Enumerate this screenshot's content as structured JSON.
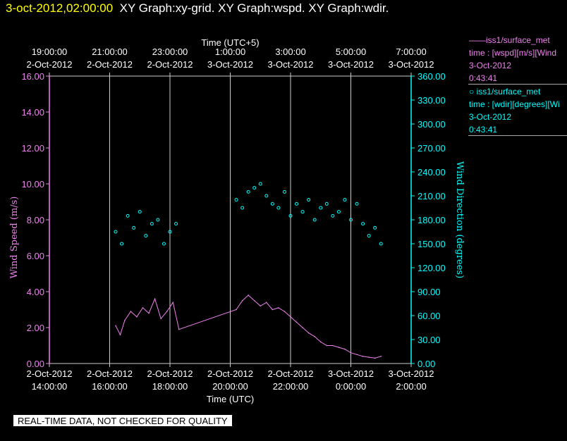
{
  "header": {
    "timestamp": "3-oct-2012,02:00:00",
    "titles": "XY Graph:xy-grid.  XY Graph:wspd.  XY Graph:wdir."
  },
  "legend": {
    "series1": {
      "symbol": "——",
      "name": "iss1/surface_met",
      "line2": "time : [wspd][m/s][Wind",
      "line3": "3-Oct-2012",
      "line4": "0:43:41",
      "color": "#ee82ee"
    },
    "series2": {
      "symbol": "○",
      "name": "iss1/surface_met",
      "line2": "time : [wdir][degrees][Wi",
      "line3": "3-Oct-2012",
      "line4": "0:43:41",
      "color": "#00ffff"
    }
  },
  "notice": "REAL-TIME DATA, NOT CHECKED FOR QUALITY",
  "chart_data": {
    "type": "line",
    "top_axis_title": "Time (UTC+5)",
    "bottom_axis_title": "Time (UTC)",
    "ylabel_left": "Wind Speed (m/s)",
    "ylabel_right": "Wind Direction (degrees)",
    "ylim_left": [
      0,
      16
    ],
    "ylim_right": [
      0,
      360
    ],
    "xlim_hours": [
      14,
      26
    ],
    "bottom_ticks": [
      {
        "date": "2-Oct-2012",
        "time": "14:00:00"
      },
      {
        "date": "2-Oct-2012",
        "time": "16:00:00"
      },
      {
        "date": "2-Oct-2012",
        "time": "18:00:00"
      },
      {
        "date": "2-Oct-2012",
        "time": "20:00:00"
      },
      {
        "date": "2-Oct-2012",
        "time": "22:00:00"
      },
      {
        "date": "3-Oct-2012",
        "time": "0:00:00"
      },
      {
        "date": "3-Oct-2012",
        "time": "2:00:00"
      }
    ],
    "top_ticks": [
      {
        "time": "19:00:00",
        "date": "2-Oct-2012"
      },
      {
        "time": "21:00:00",
        "date": "2-Oct-2012"
      },
      {
        "time": "23:00:00",
        "date": "2-Oct-2012"
      },
      {
        "time": "1:00:00",
        "date": "3-Oct-2012"
      },
      {
        "time": "3:00:00",
        "date": "3-Oct-2012"
      },
      {
        "time": "5:00:00",
        "date": "3-Oct-2012"
      },
      {
        "time": "7:00:00",
        "date": "3-Oct-2012"
      }
    ],
    "left_ticks": [
      "0.00",
      "2.00",
      "4.00",
      "6.00",
      "8.00",
      "10.00",
      "12.00",
      "14.00",
      "16.00"
    ],
    "right_ticks": [
      "0.00",
      "30.00",
      "60.00",
      "90.00",
      "120.00",
      "150.00",
      "180.00",
      "210.00",
      "240.00",
      "270.00",
      "300.00",
      "330.00",
      "360.00"
    ],
    "vertical_gridlines_hours": [
      16,
      18,
      20,
      22,
      24
    ],
    "wspd_series": {
      "name": "wspd",
      "color": "#ee82ee",
      "hours": [
        16.2,
        16.35,
        16.5,
        16.7,
        16.9,
        17.1,
        17.3,
        17.5,
        17.7,
        17.9,
        18.1,
        18.3,
        20.2,
        20.4,
        20.6,
        20.8,
        21.0,
        21.2,
        21.4,
        21.6,
        21.8,
        22.0,
        22.2,
        22.4,
        22.6,
        22.8,
        23.0,
        23.2,
        23.4,
        23.6,
        23.8,
        24.0,
        24.2,
        24.4,
        24.6,
        24.8,
        25.0
      ],
      "values": [
        2.1,
        1.6,
        2.4,
        2.9,
        2.6,
        3.1,
        2.8,
        3.6,
        2.5,
        2.9,
        3.4,
        1.9,
        3.0,
        3.5,
        3.8,
        3.5,
        3.2,
        3.4,
        3.0,
        3.1,
        2.9,
        2.6,
        2.3,
        2.0,
        1.7,
        1.5,
        1.2,
        1.0,
        1.0,
        0.9,
        0.8,
        0.6,
        0.5,
        0.4,
        0.35,
        0.3,
        0.4
      ]
    },
    "wdir_series": {
      "name": "wdir",
      "color": "#00ffff",
      "hours": [
        16.2,
        16.4,
        16.6,
        16.8,
        17.0,
        17.2,
        17.4,
        17.6,
        17.8,
        18.0,
        18.2,
        20.2,
        20.4,
        20.6,
        20.8,
        21.0,
        21.2,
        21.4,
        21.6,
        21.8,
        22.0,
        22.2,
        22.4,
        22.6,
        22.8,
        23.0,
        23.2,
        23.4,
        23.6,
        23.8,
        24.0,
        24.2,
        24.4,
        24.6,
        24.8,
        25.0
      ],
      "values": [
        165,
        150,
        185,
        170,
        190,
        160,
        175,
        180,
        150,
        165,
        175,
        205,
        195,
        215,
        220,
        225,
        210,
        200,
        195,
        215,
        185,
        200,
        190,
        205,
        180,
        195,
        200,
        185,
        190,
        205,
        180,
        200,
        175,
        160,
        170,
        150
      ]
    }
  }
}
